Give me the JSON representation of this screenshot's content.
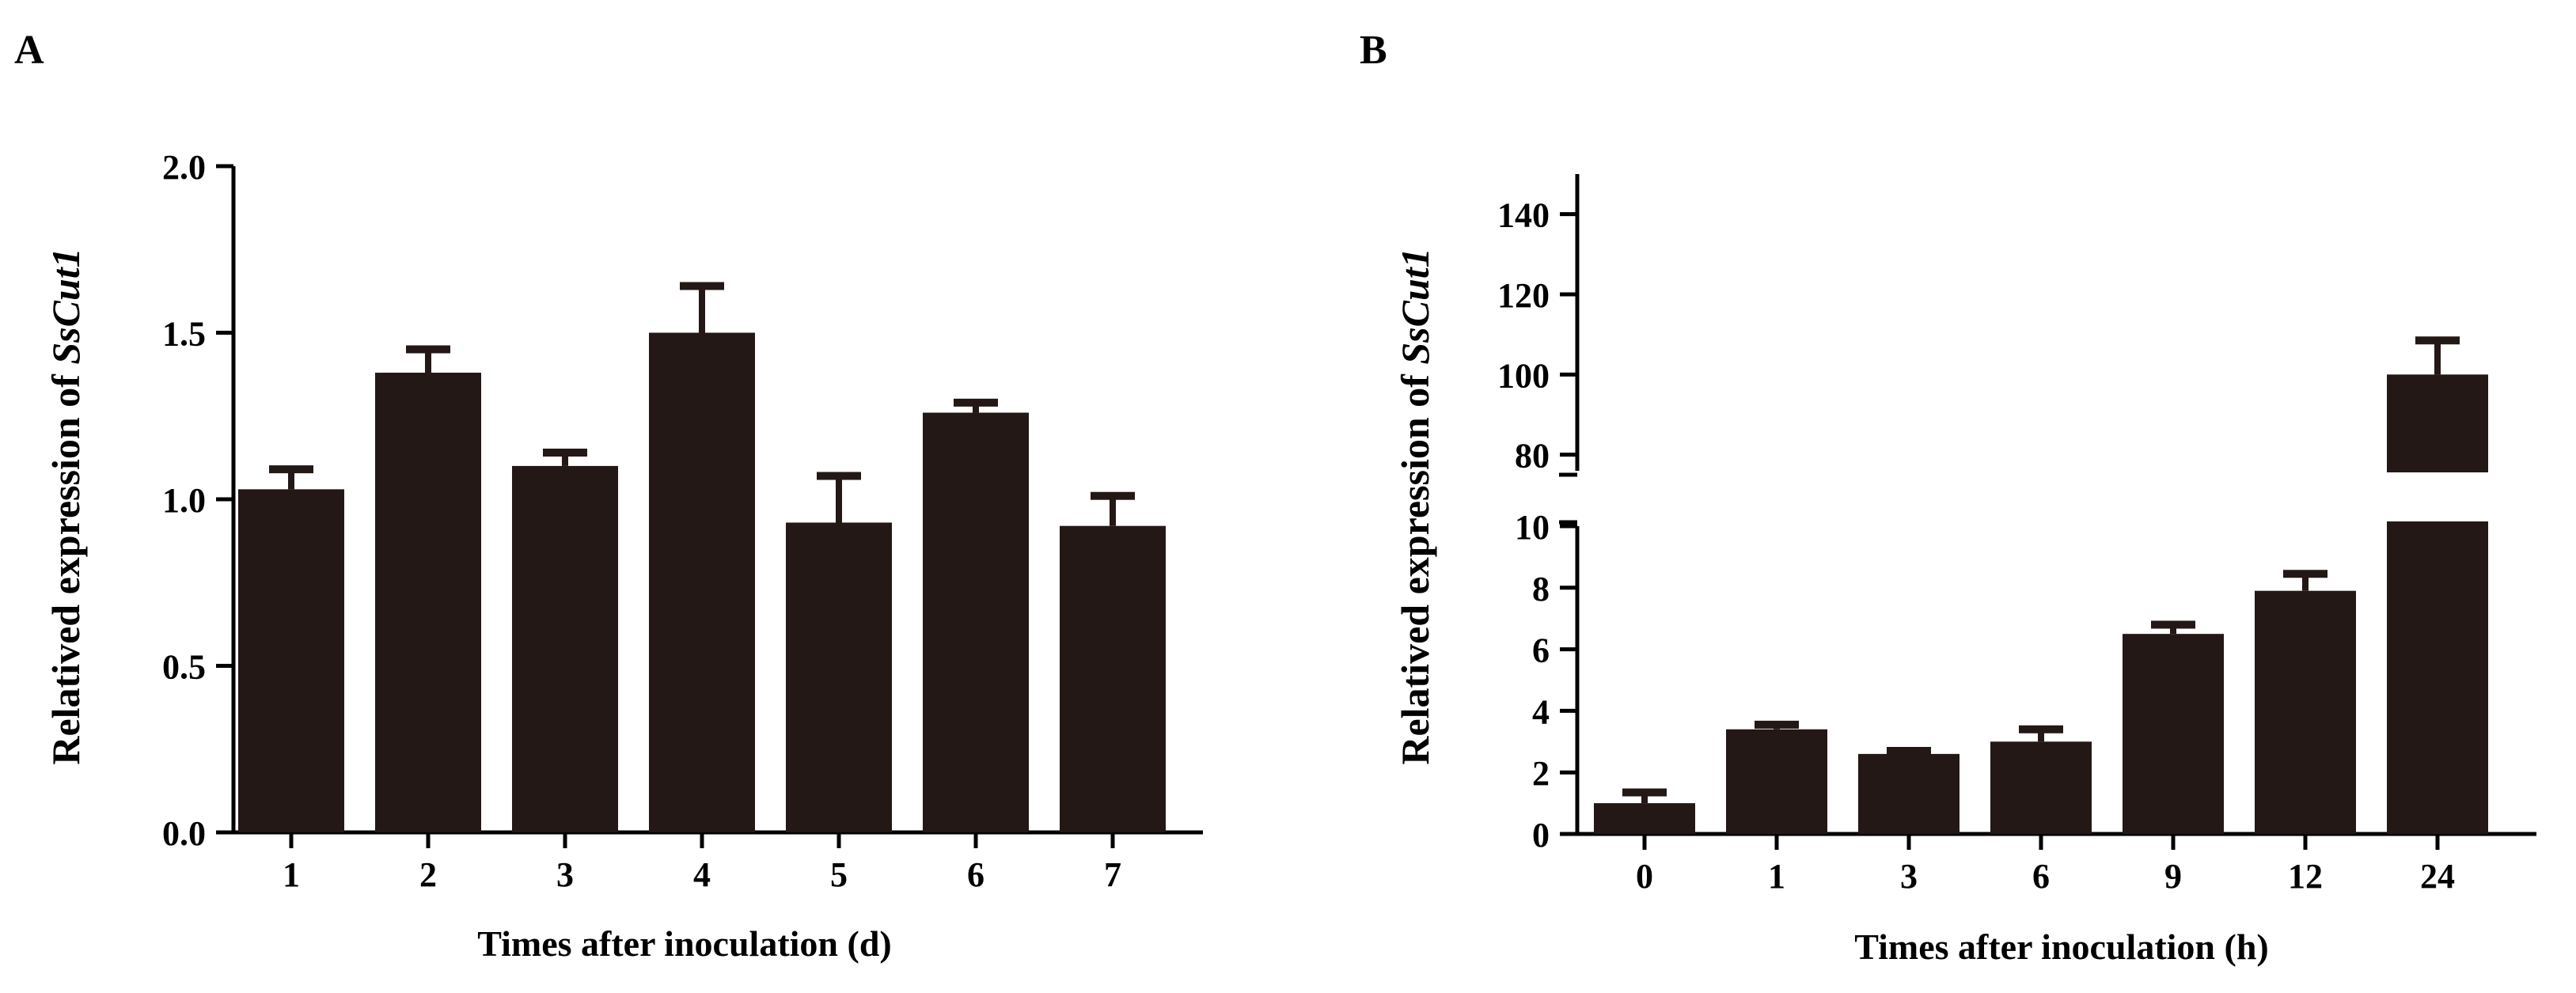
{
  "chart_data": [
    {
      "panel_label": "A",
      "type": "bar",
      "categories": [
        "1",
        "2",
        "3",
        "4",
        "5",
        "6",
        "7"
      ],
      "values": [
        1.03,
        1.38,
        1.1,
        1.5,
        0.93,
        1.26,
        0.92
      ],
      "errors": [
        0.06,
        0.07,
        0.04,
        0.14,
        0.14,
        0.03,
        0.09
      ],
      "ylabel_prefix": "Relatived expression of ",
      "ylabel_gene": "SsCut1",
      "xlabel": "Times after inoculation (d)",
      "ylim": [
        0,
        2.0
      ],
      "yticks": [
        "0.0",
        "0.5",
        "1.0",
        "1.5",
        "2.0"
      ],
      "bar_color": "#231815"
    },
    {
      "panel_label": "B",
      "type": "bar",
      "categories": [
        "0",
        "1",
        "3",
        "6",
        "9",
        "12",
        "24"
      ],
      "values": [
        1.0,
        3.4,
        2.6,
        3.0,
        6.5,
        7.9,
        100
      ],
      "errors": [
        0.35,
        0.15,
        0.1,
        0.4,
        0.3,
        0.55,
        8.5
      ],
      "ylabel_prefix": "Relatived expression of ",
      "ylabel_gene": "SsCut1",
      "xlabel": "Times after inoculation (h)",
      "broken_axis": {
        "lower_range": [
          0,
          10
        ],
        "upper_range": [
          75,
          150
        ]
      },
      "yticks_lower": [
        "0",
        "2",
        "4",
        "6",
        "8",
        "10"
      ],
      "yticks_upper": [
        "80",
        "100",
        "120",
        "140"
      ],
      "bar_color": "#231815"
    }
  ]
}
